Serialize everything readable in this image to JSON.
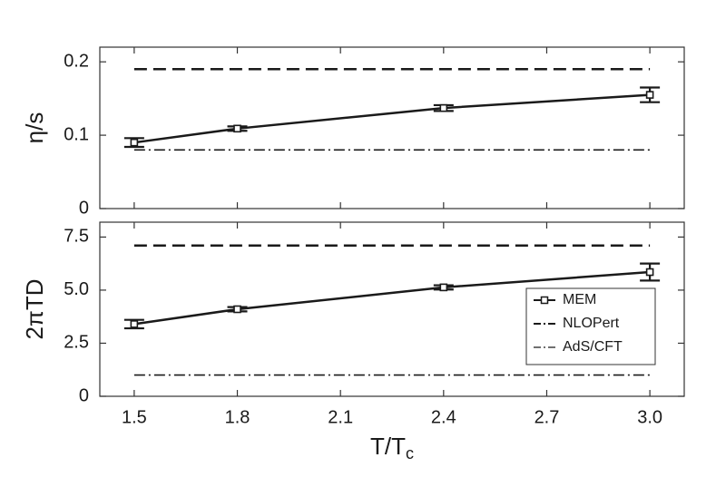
{
  "chart_data": [
    {
      "type": "line",
      "ylabel": "η/s",
      "xlim": [
        1.4,
        3.1
      ],
      "ylim": [
        0,
        0.22
      ],
      "yticks": [
        0,
        0.1,
        0.2
      ],
      "series": [
        {
          "name": "MEM",
          "color": "#1a1a1a",
          "linestyle": "solid",
          "marker": "square",
          "x": [
            1.5,
            1.8,
            2.4,
            3.0
          ],
          "values": [
            0.09,
            0.109,
            0.137,
            0.155
          ],
          "errors": [
            0.006,
            0.003,
            0.004,
            0.01
          ]
        },
        {
          "name": "NLOPert",
          "color": "#1a1a1a",
          "linestyle": "dashed",
          "x": [
            1.5,
            3.0
          ],
          "values": [
            0.19,
            0.19
          ]
        },
        {
          "name": "AdS/CFT",
          "color": "#1a1a1a",
          "linestyle": "dashdot",
          "x": [
            1.5,
            3.0
          ],
          "values": [
            0.08,
            0.08
          ]
        }
      ]
    },
    {
      "type": "line",
      "ylabel": "2πTD",
      "xlabel": "T/T",
      "xlabel_subscript": "c",
      "legend": "lower right",
      "xlim": [
        1.4,
        3.1
      ],
      "xticks": [
        1.5,
        1.8,
        2.1,
        2.4,
        2.7,
        {
          "value": 3,
          "label": "3.0"
        }
      ],
      "ylim": [
        0,
        8.2
      ],
      "yticks": [
        0,
        2.5,
        {
          "value": 5,
          "label": "5.0"
        },
        7.5
      ],
      "series": [
        {
          "name": "MEM",
          "color": "#1a1a1a",
          "linestyle": "solid",
          "marker": "square",
          "x": [
            1.5,
            1.8,
            2.4,
            3.0
          ],
          "values": [
            3.4,
            4.1,
            5.13,
            5.85
          ],
          "errors": [
            0.2,
            0.1,
            0.1,
            0.4
          ]
        },
        {
          "name": "NLOPert",
          "color": "#1a1a1a",
          "linestyle": "dashed",
          "x": [
            1.5,
            3.0
          ],
          "values": [
            7.1,
            7.1
          ]
        },
        {
          "name": "AdS/CFT",
          "color": "#1a1a1a",
          "linestyle": "dashdot",
          "x": [
            1.5,
            3.0
          ],
          "values": [
            1.0,
            1.0
          ]
        }
      ]
    }
  ]
}
